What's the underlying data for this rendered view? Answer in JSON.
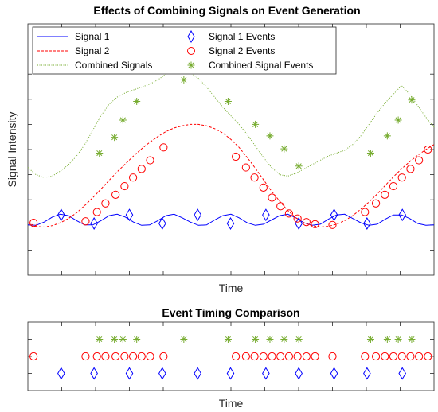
{
  "chart_data": [
    {
      "type": "line",
      "title": "Effects of Combining Signals on Event Generation",
      "xlabel": "Time",
      "ylabel": "Signal Intensity",
      "xlim": [
        0,
        1
      ],
      "ylim": [
        -0.7,
        2.8
      ],
      "xtick_labels_shown": false,
      "ytick_labels_shown": false,
      "legend_location": "top",
      "legend": [
        {
          "label": "Signal 1",
          "style": "solid-line"
        },
        {
          "label": "Signal 2",
          "style": "dashed-line"
        },
        {
          "label": "Combined Signals",
          "style": "dotted-line"
        },
        {
          "label": "Signal 1 Events",
          "style": "diamond-marker"
        },
        {
          "label": "Signal 2 Events",
          "style": "circle-marker"
        },
        {
          "label": "Combined Signal Events",
          "style": "star-marker"
        }
      ],
      "series": [
        {
          "name": "Signal 1",
          "color": "#0000ff",
          "x": [
            0.0,
            0.02,
            0.04,
            0.06,
            0.08,
            0.1,
            0.12,
            0.14,
            0.16,
            0.18,
            0.2,
            0.22,
            0.24,
            0.26,
            0.28,
            0.3,
            0.32,
            0.34,
            0.36,
            0.38,
            0.4,
            0.42,
            0.44,
            0.46,
            0.48,
            0.5,
            0.52,
            0.54,
            0.56,
            0.58,
            0.6,
            0.62,
            0.64,
            0.66,
            0.68,
            0.7,
            0.72,
            0.74,
            0.76,
            0.78,
            0.8,
            0.82,
            0.84,
            0.86,
            0.88,
            0.9,
            0.92,
            0.94,
            0.96,
            0.98,
            1.0
          ],
          "y": [
            0.0,
            -0.005,
            0.04,
            0.11,
            0.15,
            0.13,
            0.06,
            0.0,
            0.0,
            0.06,
            0.13,
            0.15,
            0.11,
            0.04,
            -0.005,
            0.0,
            0.06,
            0.13,
            0.15,
            0.1,
            0.04,
            -0.005,
            0.0,
            0.07,
            0.13,
            0.15,
            0.1,
            0.03,
            -0.005,
            0.01,
            0.07,
            0.13,
            0.15,
            0.1,
            0.03,
            -0.005,
            0.01,
            0.08,
            0.14,
            0.15,
            0.09,
            0.03,
            -0.005,
            0.01,
            0.08,
            0.14,
            0.14,
            0.09,
            0.02,
            -0.005,
            0.0
          ]
        },
        {
          "name": "Signal 2",
          "color": "#ff0000",
          "x": [
            0.0,
            0.02,
            0.04,
            0.06,
            0.08,
            0.1,
            0.12,
            0.14,
            0.16,
            0.18,
            0.2,
            0.22,
            0.24,
            0.26,
            0.28,
            0.3,
            0.32,
            0.34,
            0.36,
            0.38,
            0.4,
            0.42,
            0.44,
            0.46,
            0.48,
            0.5,
            0.52,
            0.54,
            0.56,
            0.58,
            0.6,
            0.62,
            0.64,
            0.66,
            0.68,
            0.7,
            0.72,
            0.74,
            0.76,
            0.78,
            0.8,
            0.82,
            0.84,
            0.86,
            0.88,
            0.9,
            0.92,
            0.94,
            0.96,
            0.98,
            1.0
          ],
          "y": [
            0.03,
            -0.02,
            -0.03,
            -0.01,
            0.03,
            0.09,
            0.17,
            0.27,
            0.38,
            0.5,
            0.62,
            0.74,
            0.85,
            0.96,
            1.06,
            1.15,
            1.23,
            1.3,
            1.35,
            1.38,
            1.4,
            1.4,
            1.38,
            1.34,
            1.28,
            1.19,
            1.08,
            0.94,
            0.79,
            0.63,
            0.47,
            0.33,
            0.2,
            0.1,
            0.03,
            -0.01,
            -0.03,
            -0.02,
            0.01,
            0.06,
            0.13,
            0.22,
            0.32,
            0.43,
            0.55,
            0.67,
            0.78,
            0.88,
            0.97,
            1.05,
            1.12
          ]
        },
        {
          "name": "Combined Signals",
          "color": "#77ac30",
          "x": [
            0.0,
            0.02,
            0.04,
            0.06,
            0.08,
            0.1,
            0.12,
            0.14,
            0.16,
            0.18,
            0.2,
            0.22,
            0.24,
            0.26,
            0.28,
            0.3,
            0.32,
            0.34,
            0.36,
            0.38,
            0.4,
            0.42,
            0.44,
            0.46,
            0.48,
            0.5,
            0.52,
            0.54,
            0.56,
            0.58,
            0.6,
            0.62,
            0.64,
            0.66,
            0.68,
            0.7,
            0.72,
            0.74,
            0.76,
            0.78,
            0.8,
            0.82,
            0.84,
            0.86,
            0.88,
            0.9,
            0.92,
            0.94,
            0.96,
            0.98,
            1.0
          ],
          "y": [
            0.8,
            0.7,
            0.66,
            0.68,
            0.75,
            0.84,
            0.96,
            1.12,
            1.32,
            1.52,
            1.68,
            1.78,
            1.84,
            1.88,
            1.92,
            1.96,
            2.02,
            2.1,
            2.16,
            2.15,
            2.12,
            2.04,
            1.92,
            1.78,
            1.64,
            1.52,
            1.4,
            1.26,
            1.1,
            0.94,
            0.8,
            0.7,
            0.68,
            0.72,
            0.78,
            0.84,
            0.9,
            0.96,
            1.0,
            1.04,
            1.12,
            1.24,
            1.4,
            1.56,
            1.7,
            1.82,
            1.94,
            1.82,
            1.66,
            1.5,
            1.36
          ]
        }
      ],
      "events": [
        {
          "name": "Signal 1 Events",
          "marker": "diamond",
          "color": "#0000ff",
          "x": [
            0.082,
            0.163,
            0.25,
            0.331,
            0.418,
            0.499,
            0.586,
            0.667,
            0.754,
            0.835,
            0.922
          ],
          "y": [
            0.14,
            0.02,
            0.14,
            0.02,
            0.14,
            0.02,
            0.14,
            0.02,
            0.14,
            0.02,
            0.14
          ]
        },
        {
          "name": "Signal 2 Events",
          "marker": "circle",
          "color": "#ff0000",
          "x": [
            0.014,
            0.142,
            0.17,
            0.191,
            0.216,
            0.238,
            0.259,
            0.28,
            0.301,
            0.334,
            0.512,
            0.537,
            0.558,
            0.58,
            0.601,
            0.622,
            0.643,
            0.664,
            0.686,
            0.707,
            0.75,
            0.83,
            0.857,
            0.879,
            0.9,
            0.921,
            0.942,
            0.963,
            0.985
          ],
          "y": [
            0.03,
            0.05,
            0.18,
            0.3,
            0.42,
            0.54,
            0.66,
            0.78,
            0.9,
            1.08,
            0.95,
            0.8,
            0.66,
            0.52,
            0.38,
            0.26,
            0.16,
            0.09,
            0.04,
            0.01,
            0.0,
            0.18,
            0.3,
            0.42,
            0.54,
            0.66,
            0.78,
            0.9,
            1.05
          ]
        },
        {
          "name": "Combined Signal Events",
          "marker": "asterisk",
          "color": "#77ac30",
          "x": [
            0.176,
            0.213,
            0.234,
            0.268,
            0.384,
            0.493,
            0.56,
            0.596,
            0.631,
            0.667,
            0.844,
            0.885,
            0.912,
            0.945
          ],
          "y": [
            1.0,
            1.22,
            1.46,
            1.72,
            2.02,
            1.72,
            1.4,
            1.24,
            1.06,
            0.82,
            1.0,
            1.24,
            1.46,
            1.74
          ]
        }
      ]
    },
    {
      "type": "scatter",
      "title": "Event Timing Comparison",
      "xlabel": "Time",
      "xlim": [
        0,
        1
      ],
      "ylim": [
        0,
        4
      ],
      "xtick_labels_shown": false,
      "ytick_labels_shown": false,
      "series": [
        {
          "name": "Signal 1 Events",
          "marker": "diamond",
          "color": "#0000ff",
          "row": 1,
          "x": [
            0.082,
            0.163,
            0.25,
            0.331,
            0.418,
            0.499,
            0.586,
            0.667,
            0.754,
            0.835,
            0.922
          ]
        },
        {
          "name": "Signal 2 Events",
          "marker": "circle",
          "color": "#ff0000",
          "row": 2,
          "x": [
            0.014,
            0.142,
            0.17,
            0.191,
            0.216,
            0.238,
            0.259,
            0.28,
            0.301,
            0.334,
            0.512,
            0.537,
            0.558,
            0.58,
            0.601,
            0.622,
            0.643,
            0.664,
            0.686,
            0.707,
            0.75,
            0.83,
            0.857,
            0.879,
            0.9,
            0.921,
            0.942,
            0.963,
            0.985
          ]
        },
        {
          "name": "Combined Signal Events",
          "marker": "asterisk",
          "color": "#77ac30",
          "row": 3,
          "x": [
            0.176,
            0.213,
            0.234,
            0.268,
            0.384,
            0.493,
            0.56,
            0.596,
            0.631,
            0.667,
            0.844,
            0.885,
            0.912,
            0.945
          ]
        }
      ]
    }
  ]
}
